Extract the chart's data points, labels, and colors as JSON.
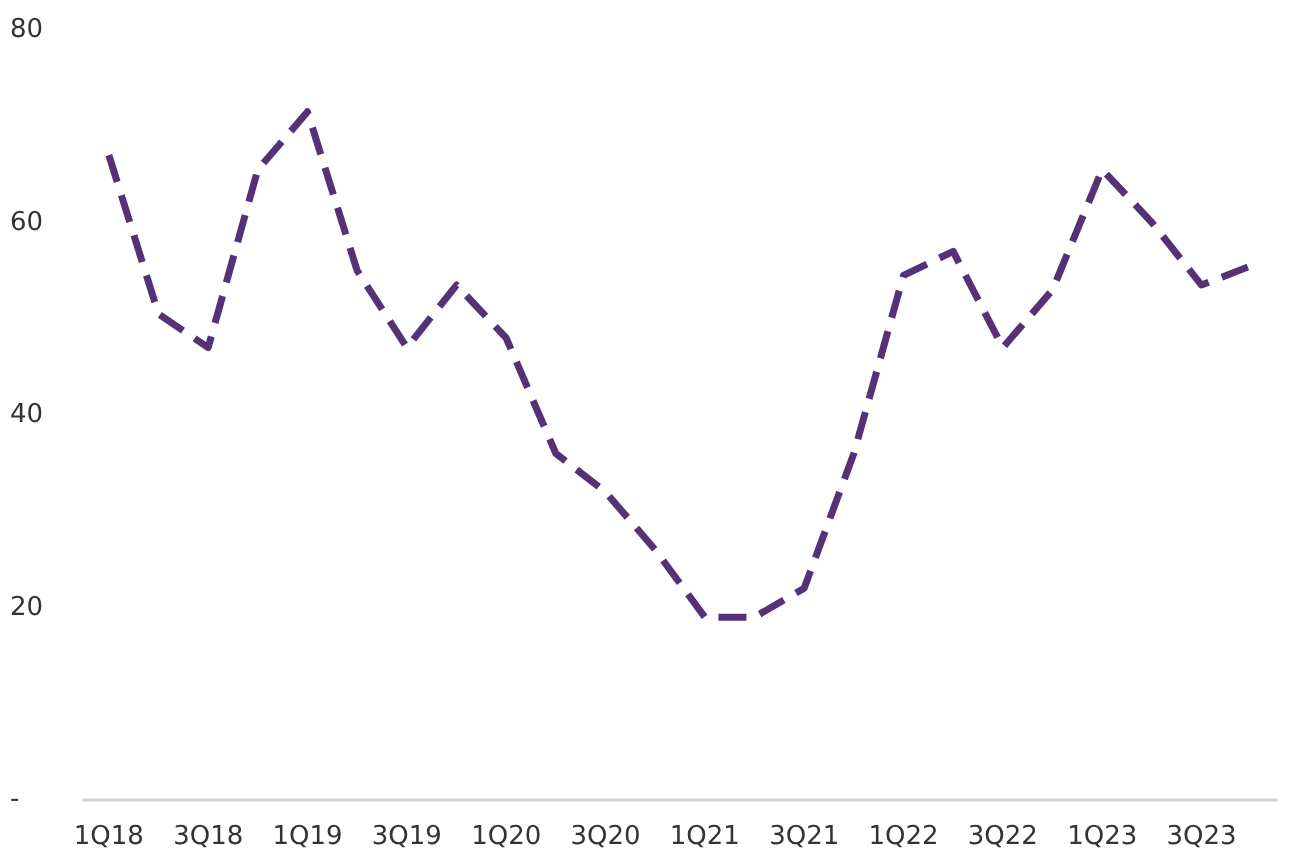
{
  "chart_data": {
    "type": "line",
    "categories": [
      "1Q18",
      null,
      "3Q18",
      null,
      "1Q19",
      null,
      "3Q19",
      null,
      "1Q20",
      null,
      "3Q20",
      null,
      "1Q21",
      null,
      "3Q21",
      null,
      "1Q22",
      null,
      "3Q22",
      null,
      "1Q23",
      null,
      "3Q23",
      null
    ],
    "series": [
      {
        "color": "#553278",
        "values": [
          67,
          50.5,
          47,
          65.5,
          71.5,
          55,
          47,
          53.5,
          48,
          36,
          32,
          26,
          19,
          19,
          22,
          36,
          54.5,
          57,
          47,
          53,
          65.5,
          60,
          53.5,
          55.5
        ]
      }
    ],
    "ylim": [
      0,
      80
    ],
    "yticks": [
      {
        "value": 0,
        "label": "-"
      },
      20,
      40,
      60,
      80
    ],
    "grid": false,
    "marker": "none",
    "line_style": "dashed"
  }
}
